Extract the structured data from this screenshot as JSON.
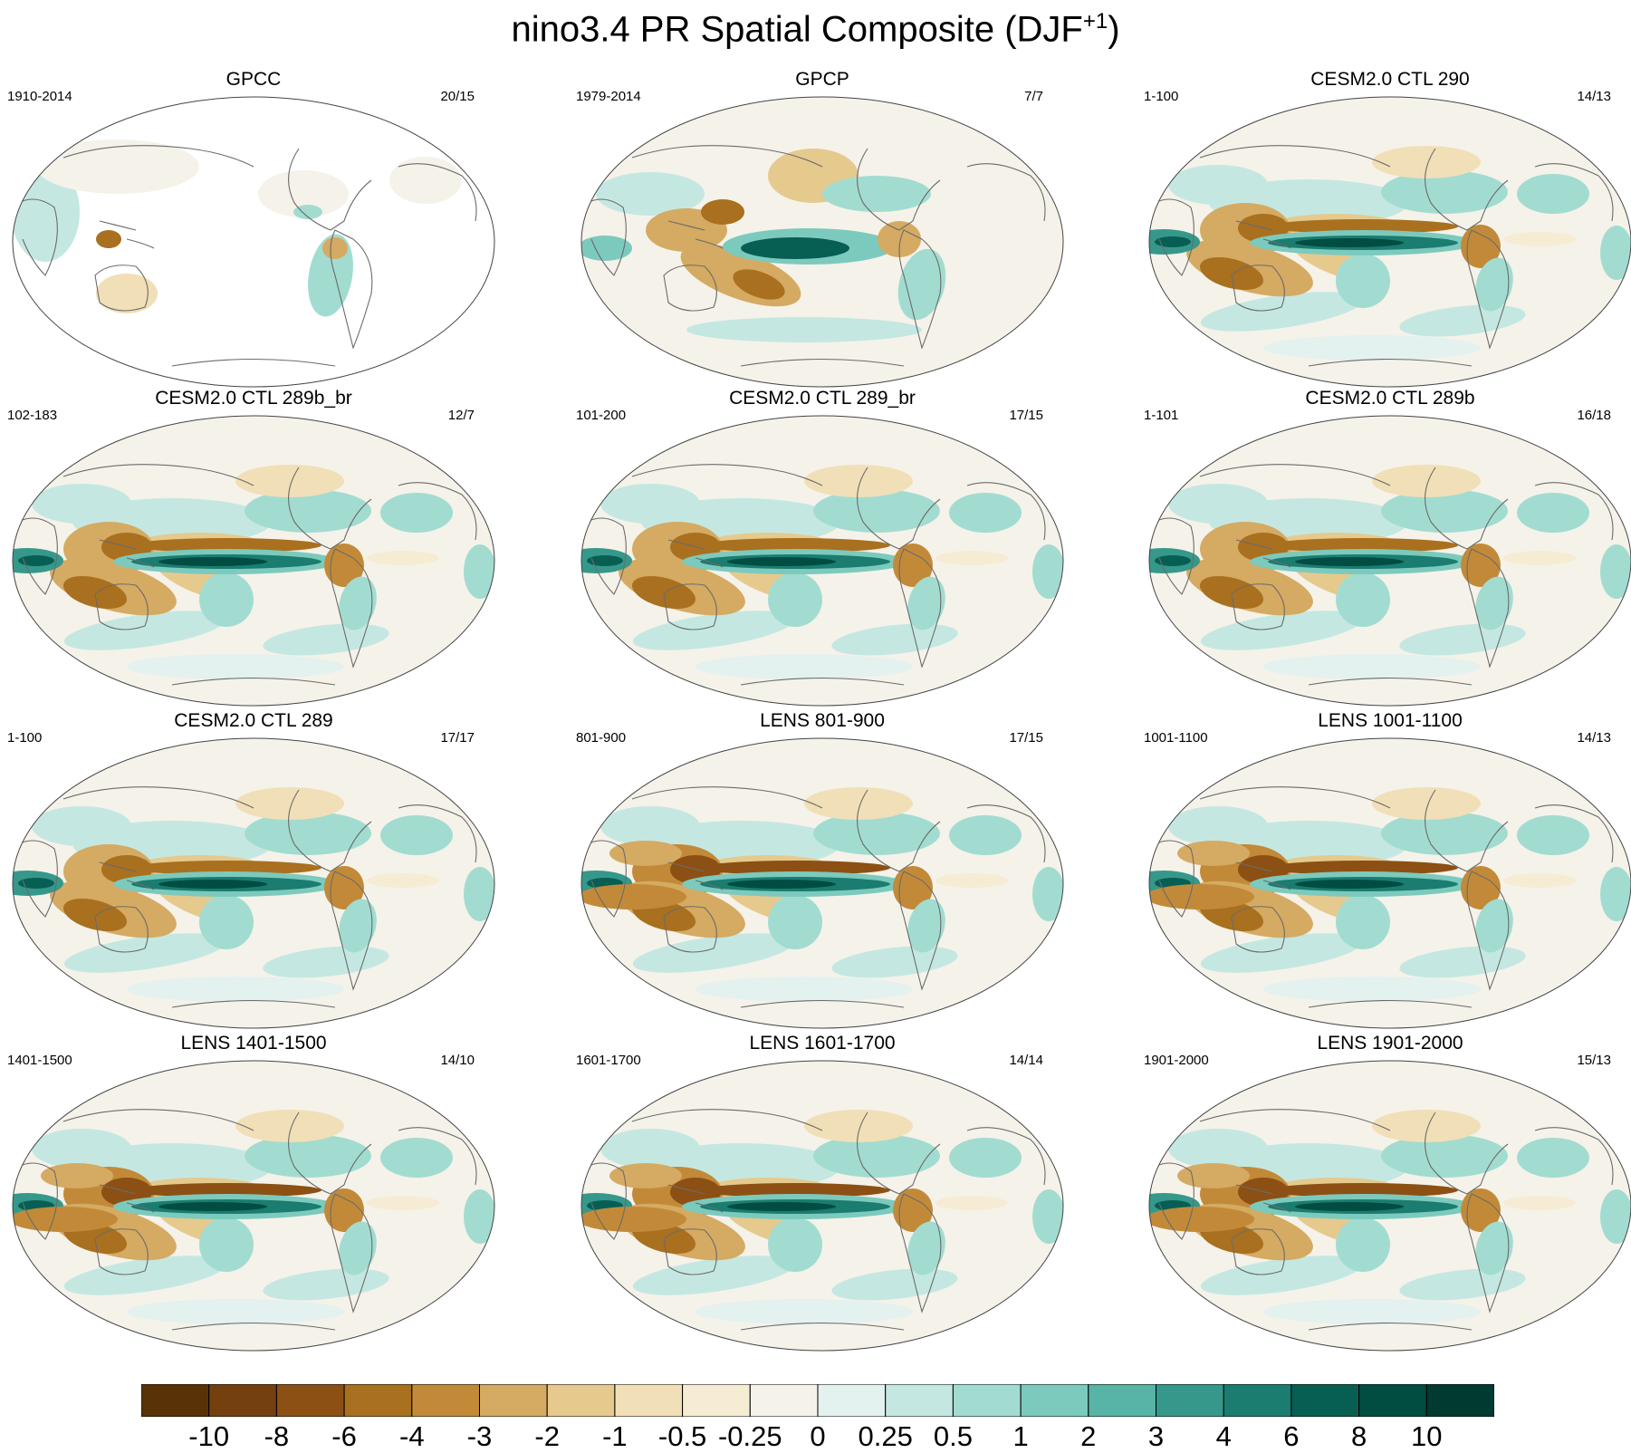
{
  "figure": {
    "title_main": "nino3.4 PR Spatial Composite (DJF",
    "title_sup": "+1",
    "title_close": ")"
  },
  "panels": [
    {
      "title": "GPCC",
      "left": "1910-2014",
      "right": "20/15",
      "pattern": "obs_land"
    },
    {
      "title": "GPCP",
      "left": "1979-2014",
      "right": "7/7",
      "pattern": "obs"
    },
    {
      "title": "CESM2.0 CTL 290",
      "left": "1-100",
      "right": "14/13",
      "pattern": "model"
    },
    {
      "title": "CESM2.0 CTL 289b_br",
      "left": "102-183",
      "right": "12/7",
      "pattern": "model"
    },
    {
      "title": "CESM2.0 CTL 289_br",
      "left": "101-200",
      "right": "17/15",
      "pattern": "model"
    },
    {
      "title": "CESM2.0 CTL 289b",
      "left": "1-101",
      "right": "16/18",
      "pattern": "model"
    },
    {
      "title": "CESM2.0 CTL 289",
      "left": "1-100",
      "right": "17/17",
      "pattern": "model"
    },
    {
      "title": "LENS 801-900",
      "left": "801-900",
      "right": "17/15",
      "pattern": "lens"
    },
    {
      "title": "LENS 1001-1100",
      "left": "1001-1100",
      "right": "14/13",
      "pattern": "lens"
    },
    {
      "title": "LENS 1401-1500",
      "left": "1401-1500",
      "right": "14/10",
      "pattern": "lens"
    },
    {
      "title": "LENS 1601-1700",
      "left": "1601-1700",
      "right": "14/14",
      "pattern": "lens"
    },
    {
      "title": "LENS 1901-2000",
      "left": "1901-2000",
      "right": "15/13",
      "pattern": "lens"
    }
  ],
  "colorbar": {
    "labels": [
      "-10",
      "-8",
      "-6",
      "-4",
      "-3",
      "-2",
      "-1",
      "-0.5",
      "-0.25",
      "0",
      "0.25",
      "0.5",
      "1",
      "2",
      "3",
      "4",
      "6",
      "8",
      "10"
    ],
    "colors": [
      "#5a3208",
      "#744010",
      "#8c5014",
      "#a9701f",
      "#c28a38",
      "#d5aa62",
      "#e6c98d",
      "#f1dfb7",
      "#f6ecd4",
      "#f5f2ea",
      "#e3f1ef",
      "#c4e8e1",
      "#a2dcd1",
      "#7ccabd",
      "#57b4a6",
      "#36988b",
      "#1b7c70",
      "#075f54",
      "#014d42",
      "#003a30"
    ]
  }
}
